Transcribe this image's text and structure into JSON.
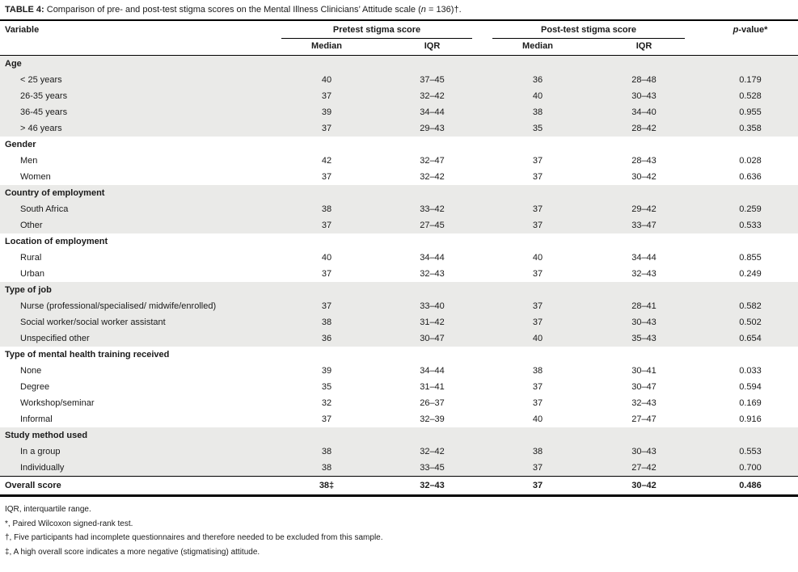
{
  "title": {
    "prefix": "TABLE 4:",
    "text": " Comparison of pre- and post-test stigma scores on the Mental Illness Clinicians’ Attitude scale (",
    "n": "n",
    "suffix": " = 136)†."
  },
  "header": {
    "variable": "Variable",
    "pretest_group": "Pretest stigma score",
    "posttest_group": "Post-test stigma score",
    "median": "Median",
    "iqr": "IQR",
    "p_italic": "p",
    "p_rest": "-value*"
  },
  "table": {
    "sections": [
      {
        "label": "Age",
        "shaded": true,
        "rows": [
          {
            "label": "< 25 years",
            "pretest_median": "40",
            "pretest_iqr": "37–45",
            "posttest_median": "36",
            "posttest_iqr": "28–48",
            "p_value": "0.179"
          },
          {
            "label": "26-35 years",
            "pretest_median": "37",
            "pretest_iqr": "32–42",
            "posttest_median": "40",
            "posttest_iqr": "30–43",
            "p_value": "0.528"
          },
          {
            "label": "36-45 years",
            "pretest_median": "39",
            "pretest_iqr": "34–44",
            "posttest_median": "38",
            "posttest_iqr": "34–40",
            "p_value": "0.955"
          },
          {
            "label": "> 46 years",
            "pretest_median": "37",
            "pretest_iqr": "29–43",
            "posttest_median": "35",
            "posttest_iqr": "28–42",
            "p_value": "0.358"
          }
        ]
      },
      {
        "label": "Gender",
        "shaded": false,
        "rows": [
          {
            "label": "Men",
            "pretest_median": "42",
            "pretest_iqr": "32–47",
            "posttest_median": "37",
            "posttest_iqr": "28–43",
            "p_value": "0.028"
          },
          {
            "label": "Women",
            "pretest_median": "37",
            "pretest_iqr": "32–42",
            "posttest_median": "37",
            "posttest_iqr": "30–42",
            "p_value": "0.636"
          }
        ]
      },
      {
        "label": "Country of employment",
        "shaded": true,
        "rows": [
          {
            "label": "South Africa",
            "pretest_median": "38",
            "pretest_iqr": "33–42",
            "posttest_median": "37",
            "posttest_iqr": "29–42",
            "p_value": "0.259"
          },
          {
            "label": "Other",
            "pretest_median": "37",
            "pretest_iqr": "27–45",
            "posttest_median": "37",
            "posttest_iqr": "33–47",
            "p_value": "0.533"
          }
        ]
      },
      {
        "label": "Location of employment",
        "shaded": false,
        "rows": [
          {
            "label": "Rural",
            "pretest_median": "40",
            "pretest_iqr": "34–44",
            "posttest_median": "40",
            "posttest_iqr": "34–44",
            "p_value": "0.855"
          },
          {
            "label": "Urban",
            "pretest_median": "37",
            "pretest_iqr": "32–43",
            "posttest_median": "37",
            "posttest_iqr": "32–43",
            "p_value": "0.249"
          }
        ]
      },
      {
        "label": "Type of job",
        "shaded": true,
        "rows": [
          {
            "label": "Nurse (professional/specialised/ midwife/enrolled)",
            "pretest_median": "37",
            "pretest_iqr": "33–40",
            "posttest_median": "37",
            "posttest_iqr": "28–41",
            "p_value": "0.582"
          },
          {
            "label": "Social worker/social worker assistant",
            "pretest_median": "38",
            "pretest_iqr": "31–42",
            "posttest_median": "37",
            "posttest_iqr": "30–43",
            "p_value": "0.502"
          },
          {
            "label": "Unspecified other",
            "pretest_median": "36",
            "pretest_iqr": "30–47",
            "posttest_median": "40",
            "posttest_iqr": "35–43",
            "p_value": "0.654"
          }
        ]
      },
      {
        "label": "Type of mental health training received",
        "shaded": false,
        "rows": [
          {
            "label": "None",
            "pretest_median": "39",
            "pretest_iqr": "34–44",
            "posttest_median": "38",
            "posttest_iqr": "30–41",
            "p_value": "0.033"
          },
          {
            "label": "Degree",
            "pretest_median": "35",
            "pretest_iqr": "31–41",
            "posttest_median": "37",
            "posttest_iqr": "30–47",
            "p_value": "0.594"
          },
          {
            "label": "Workshop/seminar",
            "pretest_median": "32",
            "pretest_iqr": "26–37",
            "posttest_median": "37",
            "posttest_iqr": "32–43",
            "p_value": "0.169"
          },
          {
            "label": "Informal",
            "pretest_median": "37",
            "pretest_iqr": "32–39",
            "posttest_median": "40",
            "posttest_iqr": "27–47",
            "p_value": "0.916"
          }
        ]
      },
      {
        "label": "Study method used",
        "shaded": true,
        "rows": [
          {
            "label": "In a group",
            "pretest_median": "38",
            "pretest_iqr": "32–42",
            "posttest_median": "38",
            "posttest_iqr": "30–43",
            "p_value": "0.553"
          },
          {
            "label": "Individually",
            "pretest_median": "38",
            "pretest_iqr": "33–45",
            "posttest_median": "37",
            "posttest_iqr": "27–42",
            "p_value": "0.700"
          }
        ]
      }
    ],
    "overall": {
      "label": "Overall score",
      "pretest_median": "38‡",
      "pretest_iqr": "32–43",
      "posttest_median": "37",
      "posttest_iqr": "30–42",
      "p_value": "0.486"
    }
  },
  "footnotes": [
    "IQR, interquartile range.",
    "*, Paired Wilcoxon signed-rank test.",
    "†, Five participants had incomplete questionnaires and therefore needed to be excluded from this sample.",
    "‡, A high overall score indicates a more negative (stigmatising) attitude."
  ],
  "colors": {
    "shaded_row": "#eaeae8",
    "text": "#1a1a1a",
    "rule": "#000000"
  }
}
